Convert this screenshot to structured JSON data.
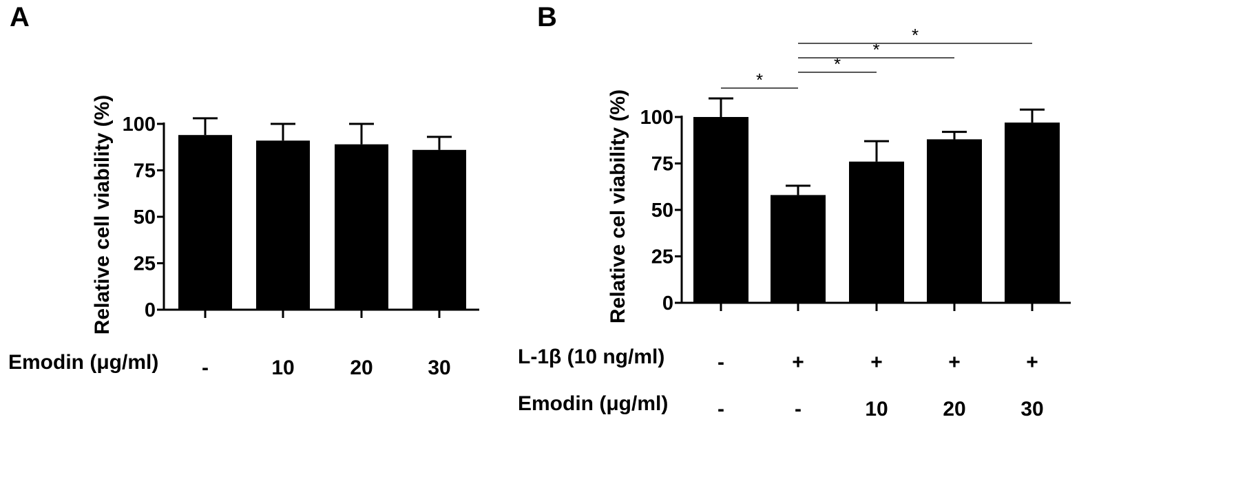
{
  "panels": [
    {
      "id": "A",
      "label": "A",
      "ylabel": "Relative cell viability (%)",
      "conditions": [
        {
          "label": "Emodin (μg/ml)",
          "values": [
            "-",
            "10",
            "20",
            "30"
          ]
        }
      ]
    },
    {
      "id": "B",
      "label": "B",
      "ylabel": "Relative cel viability (%)",
      "conditions": [
        {
          "label": "L-1β (10  ng/ml)",
          "values": [
            "-",
            "+",
            "+",
            "+",
            "+"
          ]
        },
        {
          "label": "Emodin (μg/ml)",
          "values": [
            "-",
            "-",
            "10",
            "20",
            "30"
          ]
        }
      ],
      "significance": [
        {
          "from": 0,
          "to": 1,
          "label": "*"
        },
        {
          "from": 1,
          "to": 2,
          "label": "*"
        },
        {
          "from": 1,
          "to": 3,
          "label": "*"
        },
        {
          "from": 1,
          "to": 4,
          "label": "*"
        }
      ]
    }
  ],
  "chart_data": [
    {
      "type": "bar",
      "panel": "A",
      "ylabel": "Relative cell viability (%)",
      "xlabel": "",
      "categories": [
        "-",
        "10",
        "20",
        "30"
      ],
      "values": [
        94,
        91,
        89,
        86
      ],
      "errors": [
        9,
        9,
        11,
        7
      ],
      "ylim": [
        0,
        100
      ],
      "yticks": [
        0,
        25,
        50,
        75,
        100
      ],
      "bar_color": "#000000"
    },
    {
      "type": "bar",
      "panel": "B",
      "ylabel": "Relative cel viability (%)",
      "xlabel": "",
      "categories": [
        "-/-",
        "+/-",
        "+/10",
        "+/20",
        "+/30"
      ],
      "values": [
        100,
        58,
        76,
        88,
        97
      ],
      "errors": [
        10,
        5,
        11,
        4,
        7
      ],
      "ylim": [
        0,
        100
      ],
      "yticks": [
        0,
        25,
        50,
        75,
        100
      ],
      "bar_color": "#000000"
    }
  ]
}
